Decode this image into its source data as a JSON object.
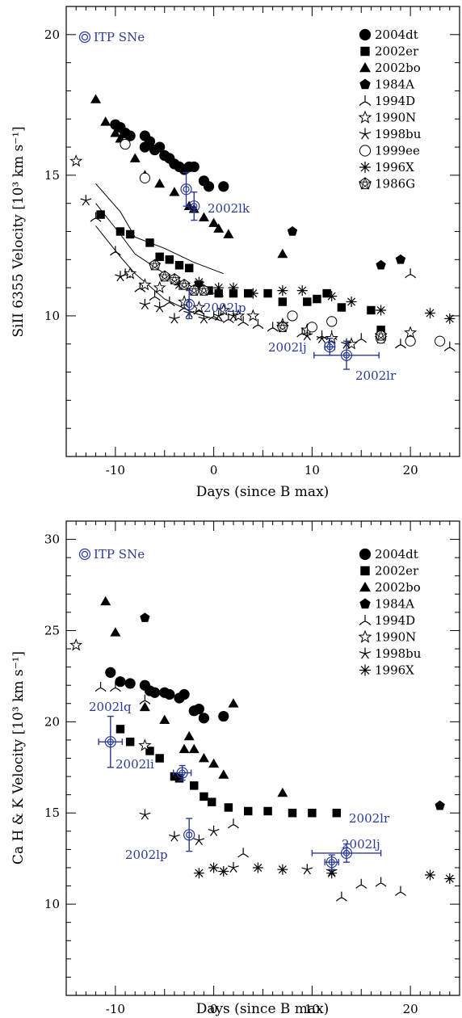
{
  "chart_data": [
    {
      "type": "scatter",
      "xlabel": "Days (since B max)",
      "ylabel": "SiII 6355 Velocity [10³ km s⁻¹]",
      "xlim": [
        -15,
        25
      ],
      "ylim": [
        5,
        21
      ],
      "xticks": [
        -10,
        0,
        10,
        20
      ],
      "yticks": [
        10,
        15,
        20
      ],
      "legend_placement": "top-right",
      "itp_label": "ITP SNe",
      "series": [
        {
          "name": "2004dt",
          "marker": "filled-circle",
          "points": [
            [
              -10,
              16.8
            ],
            [
              -9.5,
              16.7
            ],
            [
              -9,
              16.5
            ],
            [
              -8.5,
              16.4
            ],
            [
              -7,
              16.4
            ],
            [
              -7,
              16.0
            ],
            [
              -6.5,
              16.2
            ],
            [
              -6,
              15.9
            ],
            [
              -5.5,
              16.0
            ],
            [
              -5,
              15.7
            ],
            [
              -4.5,
              15.6
            ],
            [
              -4,
              15.4
            ],
            [
              -3.5,
              15.3
            ],
            [
              -3,
              15.2
            ],
            [
              -2.5,
              15.3
            ],
            [
              -2,
              15.3
            ],
            [
              -1,
              14.8
            ],
            [
              -0.5,
              14.6
            ],
            [
              1,
              14.6
            ]
          ]
        },
        {
          "name": "2002er",
          "marker": "filled-square",
          "points": [
            [
              -11.5,
              13.6
            ],
            [
              -9.5,
              13.0
            ],
            [
              -8.5,
              12.9
            ],
            [
              -6.5,
              12.6
            ],
            [
              -5.5,
              12.1
            ],
            [
              -4.5,
              12.0
            ],
            [
              -3.5,
              11.8
            ],
            [
              -2.5,
              11.7
            ],
            [
              -1.5,
              11.1
            ],
            [
              -0.5,
              10.9
            ],
            [
              0.5,
              10.8
            ],
            [
              2,
              10.8
            ],
            [
              3.5,
              10.8
            ],
            [
              5.5,
              10.8
            ],
            [
              7,
              10.5
            ],
            [
              9.5,
              10.5
            ],
            [
              10.5,
              10.6
            ],
            [
              11.5,
              10.8
            ],
            [
              13,
              10.3
            ],
            [
              16,
              10.2
            ],
            [
              17,
              9.5
            ]
          ]
        },
        {
          "name": "2002bo",
          "marker": "filled-triangle",
          "points": [
            [
              -12,
              17.7
            ],
            [
              -11,
              16.9
            ],
            [
              -10,
              16.5
            ],
            [
              -9.5,
              16.3
            ],
            [
              -8,
              15.6
            ],
            [
              -7,
              15.0
            ],
            [
              -5.5,
              14.7
            ],
            [
              -4,
              14.4
            ],
            [
              -2.5,
              13.9
            ],
            [
              -2,
              13.8
            ],
            [
              -1,
              13.5
            ],
            [
              0,
              13.3
            ],
            [
              0.5,
              13.1
            ],
            [
              1.5,
              12.9
            ],
            [
              7,
              12.2
            ]
          ]
        },
        {
          "name": "1984A",
          "marker": "filled-pentagon",
          "points": [
            [
              8,
              13.0
            ],
            [
              17,
              11.8
            ],
            [
              19,
              12.0
            ]
          ]
        },
        {
          "name": "1994D",
          "marker": "tri-branch",
          "points": [
            [
              -12,
              13.5
            ],
            [
              -10,
              12.3
            ],
            [
              -9,
              11.5
            ],
            [
              -7.5,
              11.0
            ],
            [
              -6,
              10.7
            ],
            [
              -4.5,
              10.5
            ],
            [
              -3,
              10.3
            ],
            [
              -1.5,
              10.2
            ],
            [
              0,
              10.0
            ],
            [
              1.5,
              9.9
            ],
            [
              3,
              9.8
            ],
            [
              4.5,
              9.7
            ],
            [
              6,
              9.6
            ],
            [
              9,
              9.4
            ],
            [
              11,
              9.3
            ],
            [
              12,
              9.3
            ],
            [
              15,
              9.2
            ],
            [
              19,
              9.0
            ],
            [
              20,
              11.5
            ],
            [
              24,
              8.9
            ]
          ]
        },
        {
          "name": "1990N",
          "marker": "open-star",
          "points": [
            [
              -14,
              15.5
            ],
            [
              -8.5,
              11.5
            ],
            [
              -7,
              11.1
            ],
            [
              -5.5,
              11.0
            ],
            [
              -3,
              10.5
            ],
            [
              -1.5,
              10.3
            ],
            [
              1,
              10.2
            ],
            [
              2.5,
              10.0
            ],
            [
              4,
              10.0
            ],
            [
              7,
              9.7
            ],
            [
              9.5,
              9.5
            ],
            [
              12,
              9.2
            ],
            [
              14,
              9.0
            ],
            [
              17,
              9.2
            ],
            [
              20,
              9.4
            ]
          ]
        },
        {
          "name": "1998bu",
          "marker": "asterisk",
          "points": [
            [
              -13,
              14.1
            ],
            [
              -9.5,
              11.4
            ],
            [
              -7,
              10.4
            ],
            [
              -5.5,
              10.3
            ],
            [
              -4,
              9.9
            ],
            [
              -2.5,
              10.1
            ],
            [
              -1,
              9.9
            ],
            [
              0.5,
              10.0
            ],
            [
              2,
              10.0
            ],
            [
              9.5,
              9.3
            ],
            [
              11,
              9.2
            ],
            [
              13.5,
              9.0
            ]
          ]
        },
        {
          "name": "1999ee",
          "marker": "open-circle",
          "points": [
            [
              -9,
              16.1
            ],
            [
              -7,
              14.9
            ],
            [
              8,
              10.0
            ],
            [
              10,
              9.6
            ],
            [
              12,
              9.8
            ],
            [
              17,
              9.2
            ],
            [
              20,
              9.1
            ],
            [
              23,
              9.1
            ]
          ]
        },
        {
          "name": "1996X",
          "marker": "star-burst",
          "points": [
            [
              -3.5,
              11.1
            ],
            [
              -1.5,
              11.2
            ],
            [
              0.5,
              11.0
            ],
            [
              2,
              11.0
            ],
            [
              4,
              10.8
            ],
            [
              7,
              10.9
            ],
            [
              9,
              10.9
            ],
            [
              12,
              10.7
            ],
            [
              14,
              10.5
            ],
            [
              17,
              10.2
            ],
            [
              22,
              10.1
            ],
            [
              24,
              9.9
            ]
          ]
        },
        {
          "name": "1986G",
          "marker": "pentagon-star",
          "points": [
            [
              -6,
              11.8
            ],
            [
              -5,
              11.4
            ],
            [
              -4,
              11.3
            ],
            [
              -3,
              11.1
            ],
            [
              -2,
              10.9
            ],
            [
              -1,
              10.9
            ],
            [
              7,
              9.6
            ],
            [
              17,
              9.3
            ]
          ]
        }
      ],
      "itp_points": [
        {
          "label": "2002lk",
          "x": -2.8,
          "y": 14.5,
          "xerr": 0,
          "yerr": 0.6
        },
        {
          "label": "2002lk",
          "x": -2.0,
          "y": 13.9,
          "xerr": 0,
          "yerr": 0.5
        },
        {
          "label": "2002lp",
          "x": -2.5,
          "y": 10.4,
          "xerr": 0,
          "yerr": 0.5
        },
        {
          "label": "2002lj",
          "x": 11.8,
          "y": 8.9,
          "xerr": 0.5,
          "yerr": 0.3
        },
        {
          "label": "2002lr",
          "x": 13.5,
          "y": 8.6,
          "xerr": 3.3,
          "yerr": 0.5
        }
      ],
      "band_lines": [
        [
          [
            -12,
            14.7
          ],
          [
            -9.5,
            13.7
          ],
          [
            -8,
            12.8
          ],
          [
            -5,
            12.4
          ],
          [
            -2,
            11.9
          ],
          [
            1,
            11.5
          ]
        ],
        [
          [
            -12,
            14.0
          ],
          [
            -9.5,
            12.9
          ],
          [
            -8,
            12.2
          ],
          [
            -5,
            11.5
          ],
          [
            -2,
            11.0
          ],
          [
            1,
            10.7
          ]
        ],
        [
          [
            -12,
            13.2
          ],
          [
            -9.5,
            12.1
          ],
          [
            -8,
            11.5
          ],
          [
            -5,
            10.6
          ],
          [
            -2,
            10.1
          ],
          [
            1,
            9.8
          ]
        ]
      ]
    },
    {
      "type": "scatter",
      "xlabel": "Days (since B max)",
      "ylabel": "Ca H & K Velocity [10³ km s⁻¹]",
      "xlim": [
        -15,
        25
      ],
      "ylim": [
        5,
        31
      ],
      "xticks": [
        -10,
        0,
        10,
        20
      ],
      "yticks": [
        10,
        15,
        20,
        25,
        30
      ],
      "legend_placement": "top-right",
      "itp_label": "ITP SNe",
      "series": [
        {
          "name": "2004dt",
          "marker": "filled-circle",
          "points": [
            [
              -10.5,
              22.7
            ],
            [
              -9.5,
              22.2
            ],
            [
              -8.5,
              22.1
            ],
            [
              -7,
              22.0
            ],
            [
              -6.5,
              21.7
            ],
            [
              -6,
              21.6
            ],
            [
              -5,
              21.6
            ],
            [
              -4.5,
              21.5
            ],
            [
              -3.5,
              21.3
            ],
            [
              -3,
              21.5
            ],
            [
              -2,
              20.6
            ],
            [
              -1.5,
              20.7
            ],
            [
              -1,
              20.2
            ],
            [
              1,
              20.3
            ]
          ]
        },
        {
          "name": "2002er",
          "marker": "filled-square",
          "points": [
            [
              -9.5,
              19.6
            ],
            [
              -8.5,
              18.9
            ],
            [
              -6.5,
              18.4
            ],
            [
              -5.5,
              18.0
            ],
            [
              -4,
              17.0
            ],
            [
              -3.5,
              16.9
            ],
            [
              -2,
              16.5
            ],
            [
              -1,
              15.9
            ],
            [
              -0.2,
              15.6
            ],
            [
              1.5,
              15.3
            ],
            [
              3.5,
              15.1
            ],
            [
              5.5,
              15.1
            ],
            [
              8,
              15.0
            ],
            [
              10,
              15.0
            ],
            [
              12.5,
              15.0
            ]
          ]
        },
        {
          "name": "2002bo",
          "marker": "filled-triangle",
          "points": [
            [
              -11,
              26.6
            ],
            [
              -10,
              24.9
            ],
            [
              -7,
              20.8
            ],
            [
              -5,
              20.1
            ],
            [
              -3,
              18.5
            ],
            [
              -2,
              18.5
            ],
            [
              -1,
              18.0
            ],
            [
              0,
              17.7
            ],
            [
              1,
              17.1
            ],
            [
              2,
              21.0
            ],
            [
              7,
              16.1
            ],
            [
              -2.5,
              19.2
            ]
          ]
        },
        {
          "name": "1984A",
          "marker": "filled-pentagon",
          "points": [
            [
              -7,
              25.7
            ],
            [
              23,
              15.4
            ]
          ]
        },
        {
          "name": "1994D",
          "marker": "tri-branch",
          "points": [
            [
              -11.5,
              21.9
            ],
            [
              -10,
              21.9
            ],
            [
              -7,
              21.2
            ],
            [
              2,
              14.4
            ],
            [
              3,
              12.8
            ],
            [
              13,
              10.4
            ],
            [
              15,
              11.1
            ],
            [
              17,
              11.2
            ],
            [
              19,
              10.7
            ]
          ]
        },
        {
          "name": "1990N",
          "marker": "open-star",
          "points": [
            [
              -14,
              24.2
            ],
            [
              -7,
              18.7
            ]
          ]
        },
        {
          "name": "1998bu",
          "marker": "asterisk",
          "points": [
            [
              -7,
              14.9
            ],
            [
              -4,
              13.7
            ],
            [
              -1.5,
              13.5
            ],
            [
              0,
              14.0
            ],
            [
              2,
              12.0
            ],
            [
              9.5,
              11.9
            ],
            [
              12,
              11.8
            ]
          ]
        },
        {
          "name": "1996X",
          "marker": "star-burst",
          "points": [
            [
              -1.5,
              11.7
            ],
            [
              0,
              12.0
            ],
            [
              1,
              11.8
            ],
            [
              4.5,
              12.0
            ],
            [
              7,
              11.9
            ],
            [
              12,
              11.7
            ],
            [
              22,
              11.6
            ],
            [
              24,
              11.4
            ]
          ]
        }
      ],
      "itp_points": [
        {
          "label": "2002lq",
          "x": -10.5,
          "y": 18.9,
          "xerr": 1.2,
          "yerr": 1.4
        },
        {
          "label": "2002li",
          "x": -3.2,
          "y": 17.2,
          "xerr": 0.9,
          "yerr": 0.4
        },
        {
          "label": "2002lp",
          "x": -2.5,
          "y": 13.8,
          "xerr": 0,
          "yerr": 0.9
        },
        {
          "label": "2002lr",
          "x": 13.5,
          "y": 12.8,
          "xerr": 3.5,
          "yerr": 0.5
        },
        {
          "label": "2002lj",
          "x": 12.0,
          "y": 12.3,
          "xerr": 0.7,
          "yerr": 0.4
        }
      ]
    }
  ]
}
